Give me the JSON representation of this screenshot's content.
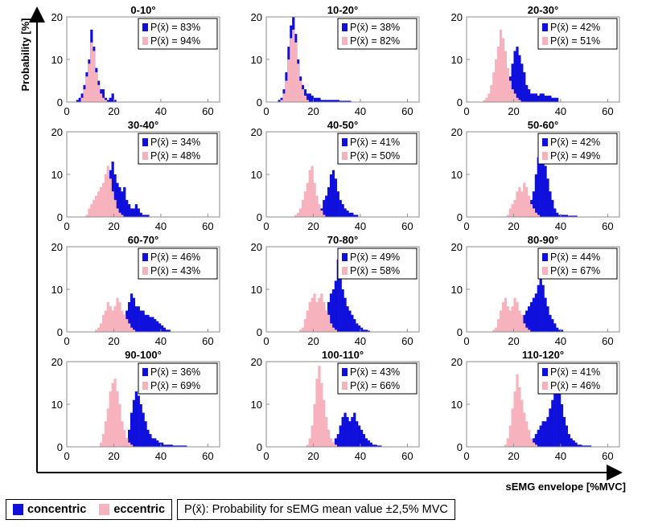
{
  "chart_data": {
    "type": "histogram-grid",
    "y_axis_label": "Probability [%]",
    "x_axis_label": "sEMG envelope [%MVC]",
    "xlim": [
      0,
      65
    ],
    "ylim": [
      0,
      20
    ],
    "xticks": [
      "0",
      "20",
      "40",
      "60"
    ],
    "yticks": [
      "0",
      "10",
      "20"
    ],
    "bin_width": 1.0,
    "series_names": [
      "concentric",
      "eccentric"
    ],
    "colors": {
      "concentric": "#1010dd",
      "eccentric": "#f7b3bd"
    },
    "legend_prefix": "P(x̄) = ",
    "panels": [
      {
        "title": "0-10°",
        "p_concentric": "83%",
        "p_eccentric": "94%",
        "concentric": {
          "start": 3,
          "values": [
            0,
            0.5,
            1,
            2,
            4,
            7,
            10,
            17,
            13,
            8,
            5,
            3,
            3,
            1,
            0.5,
            1,
            2,
            0.5,
            0,
            0,
            0,
            0,
            0,
            0
          ]
        },
        "eccentric": {
          "start": 3,
          "values": [
            0,
            0,
            0,
            1,
            3,
            6,
            9,
            14,
            12,
            7,
            4,
            2,
            1,
            0.5
          ]
        }
      },
      {
        "title": "10-20°",
        "p_concentric": "38%",
        "p_eccentric": "82%",
        "concentric": {
          "start": 4,
          "values": [
            0,
            0.5,
            1,
            3,
            7,
            13,
            18,
            20,
            16,
            10,
            6,
            4,
            3,
            2,
            2,
            1.5,
            1,
            1,
            1,
            0.5,
            0.5,
            0.5,
            0.5,
            0.5,
            0.5,
            0.5,
            0.5,
            0.3,
            0.3,
            0.3,
            0.3,
            0.3
          ]
        },
        "eccentric": {
          "start": 4,
          "values": [
            0,
            0,
            0.5,
            2,
            5,
            10,
            15,
            17,
            14,
            9,
            5,
            3,
            1.5,
            0.5
          ]
        }
      },
      {
        "title": "20-30°",
        "p_concentric": "42%",
        "p_eccentric": "51%",
        "concentric": {
          "start": 14,
          "values": [
            0.5,
            0.5,
            1,
            3,
            6,
            9,
            12,
            13,
            11,
            9,
            7,
            4,
            3,
            2,
            2,
            2,
            1.5,
            2,
            2,
            1.5,
            1.5,
            1.5,
            1,
            1,
            1
          ]
        },
        "eccentric": {
          "start": 7,
          "values": [
            0.5,
            1,
            2,
            4,
            7,
            10,
            13,
            17,
            15,
            12,
            8,
            5,
            3,
            2,
            1,
            0.5
          ]
        }
      },
      {
        "title": "30-40°",
        "p_concentric": "34%",
        "p_eccentric": "48%",
        "concentric": {
          "start": 13,
          "values": [
            0.5,
            1,
            2,
            4,
            7,
            11,
            13,
            10,
            8,
            7,
            6,
            7,
            4,
            3,
            2,
            2,
            3,
            2,
            1,
            0.5,
            0.5,
            0.5
          ]
        },
        "eccentric": {
          "start": 8,
          "values": [
            0.5,
            2,
            3,
            4,
            5,
            6,
            7,
            8,
            10,
            12,
            9,
            6,
            4,
            2,
            1,
            0.5
          ]
        }
      },
      {
        "title": "40-50°",
        "p_concentric": "41%",
        "p_eccentric": "50%",
        "concentric": {
          "start": 21,
          "values": [
            0.5,
            1,
            2,
            4,
            5,
            7,
            10,
            11,
            9,
            6,
            4,
            3,
            2,
            1.5,
            1,
            1,
            0.5,
            0.5
          ]
        },
        "eccentric": {
          "start": 12,
          "values": [
            0.5,
            1,
            2,
            4,
            6,
            8,
            11,
            12,
            8,
            5,
            3,
            1.5,
            0.5
          ]
        }
      },
      {
        "title": "50-60°",
        "p_concentric": "42%",
        "p_eccentric": "49%",
        "concentric": {
          "start": 25,
          "values": [
            1,
            2,
            4,
            6,
            10,
            14,
            16,
            13,
            12,
            9,
            6,
            4,
            2,
            1,
            0.5,
            0.5,
            0.5,
            0.5,
            0.3,
            0.3,
            0.3,
            0.3
          ]
        },
        "eccentric": {
          "start": 17,
          "values": [
            0.5,
            2,
            3,
            4,
            6,
            7,
            6,
            8,
            7,
            5,
            3,
            2,
            1,
            0.5
          ]
        }
      },
      {
        "title": "60-70°",
        "p_concentric": "46%",
        "p_eccentric": "43%",
        "concentric": {
          "start": 19,
          "values": [
            0.5,
            1,
            1.5,
            2,
            3,
            4,
            5,
            7,
            9,
            8,
            6,
            6,
            5,
            5,
            4,
            4,
            3.5,
            3.5,
            3,
            2.5,
            2,
            1.5,
            1,
            0.5,
            0.5
          ]
        },
        "eccentric": {
          "start": 12,
          "values": [
            0.5,
            1,
            2,
            4,
            5,
            7,
            6,
            5,
            6,
            8,
            7,
            5,
            4,
            3,
            2,
            1,
            0.5
          ]
        }
      },
      {
        "title": "70-80°",
        "p_concentric": "49%",
        "p_eccentric": "58%",
        "concentric": {
          "start": 21,
          "values": [
            0.5,
            1,
            2,
            3,
            5,
            7,
            9,
            10,
            12,
            17,
            14,
            10,
            8,
            6,
            5,
            4,
            3,
            2,
            1.5,
            1,
            0.5,
            0.5,
            0.3
          ]
        },
        "eccentric": {
          "start": 14,
          "values": [
            0.5,
            1,
            3,
            5,
            7,
            8,
            9,
            7,
            8,
            9,
            7,
            5,
            4,
            2,
            1,
            0.5
          ]
        }
      },
      {
        "title": "80-90°",
        "p_concentric": "44%",
        "p_eccentric": "67%",
        "concentric": {
          "start": 19,
          "values": [
            0.5,
            1,
            1.5,
            2,
            3,
            4,
            5,
            6,
            7,
            8,
            9,
            11,
            13,
            11,
            8,
            6,
            4,
            3,
            2,
            1,
            0.5,
            0.5
          ]
        },
        "eccentric": {
          "start": 11,
          "values": [
            0.5,
            1,
            3,
            5,
            7,
            8,
            6,
            5,
            6,
            8,
            7,
            5,
            4,
            2,
            1,
            0.5
          ]
        }
      },
      {
        "title": "90-100°",
        "p_concentric": "36%",
        "p_eccentric": "69%",
        "concentric": {
          "start": 23,
          "values": [
            0.5,
            1,
            2,
            4,
            8,
            11,
            13,
            12,
            10,
            8,
            6,
            4,
            3,
            2,
            2,
            1.5,
            1,
            1,
            0.5,
            0.5,
            0.5,
            0.5,
            0.3,
            0.3,
            0.3,
            0.3,
            0.3,
            0.3
          ]
        },
        "eccentric": {
          "start": 14,
          "values": [
            1,
            3,
            6,
            9,
            13,
            15,
            16,
            13,
            10,
            6,
            4,
            2,
            1,
            0.5
          ]
        }
      },
      {
        "title": "100-110°",
        "p_concentric": "43%",
        "p_eccentric": "66%",
        "concentric": {
          "start": 27,
          "values": [
            0.5,
            1,
            2,
            3,
            5,
            7,
            8,
            7,
            6,
            7,
            8,
            6,
            5,
            4,
            3,
            2,
            1.5,
            1,
            0.5,
            0.5,
            0.3,
            0.3
          ]
        },
        "eccentric": {
          "start": 17,
          "values": [
            0.5,
            2,
            5,
            10,
            16,
            19,
            15,
            11,
            7,
            4,
            2,
            1,
            0.5
          ]
        }
      },
      {
        "title": "110-120°",
        "p_concentric": "41%",
        "p_eccentric": "46%",
        "concentric": {
          "start": 26,
          "values": [
            0.5,
            1,
            2,
            3,
            4,
            5,
            6,
            6,
            7,
            9,
            11,
            14,
            15,
            13,
            10,
            7,
            5,
            3,
            2,
            1.5,
            1,
            0.5,
            0.5,
            0.3,
            0.3,
            0.3,
            0.3
          ]
        },
        "eccentric": {
          "start": 16,
          "values": [
            0.5,
            2,
            5,
            9,
            13,
            17,
            14,
            11,
            8,
            6,
            4,
            2,
            1,
            0.5
          ]
        }
      }
    ]
  },
  "legend": {
    "concentric_label": "concentric",
    "eccentric_label": "eccentric",
    "probability_note": "P(x̄): Probability for sEMG mean value ±2,5% MVC"
  }
}
